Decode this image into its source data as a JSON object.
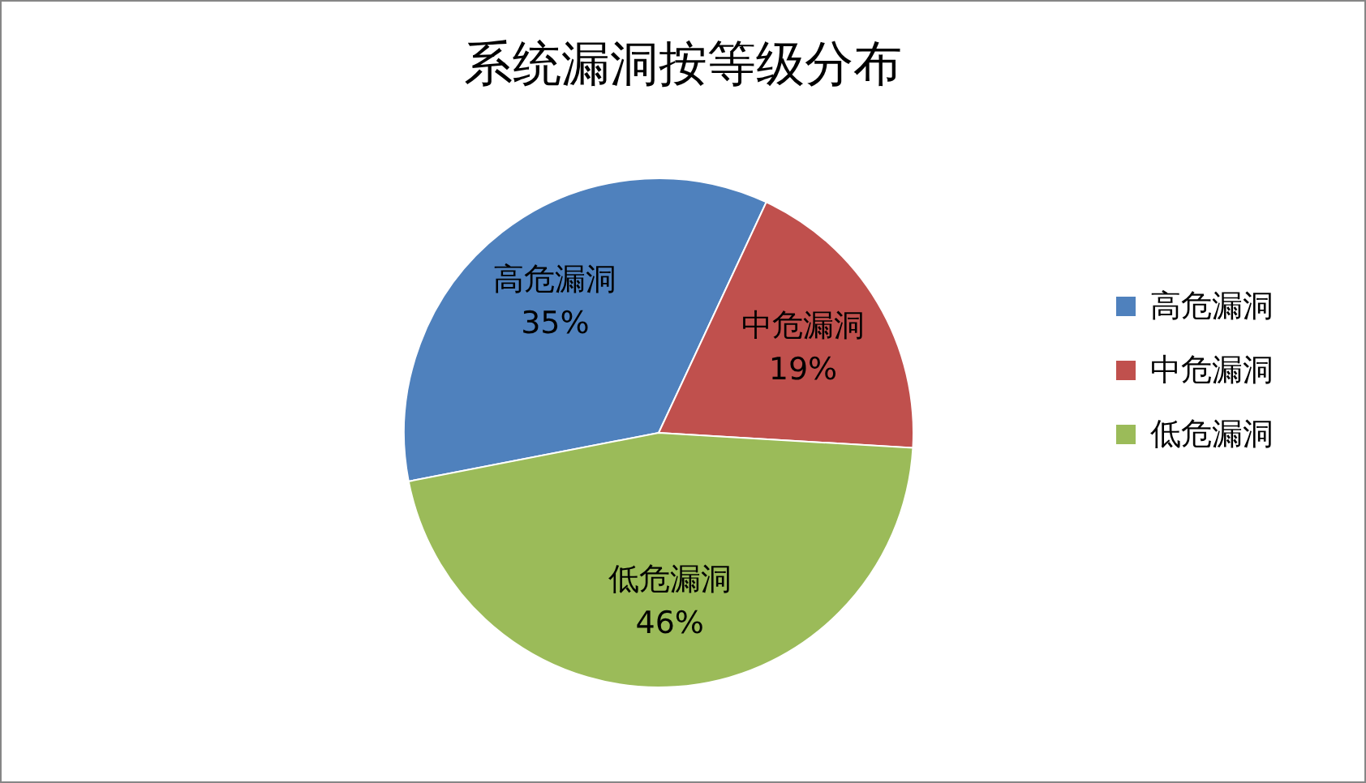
{
  "chart_data": {
    "type": "pie",
    "title": "系统漏洞按等级分布",
    "categories": [
      "高危漏洞",
      "中危漏洞",
      "低危漏洞"
    ],
    "values": [
      35,
      19,
      46
    ],
    "colors": [
      "#4f81bd",
      "#c0504d",
      "#9bbb59"
    ],
    "value_labels": [
      "35%",
      "19%",
      "46%"
    ],
    "legend": "right"
  }
}
